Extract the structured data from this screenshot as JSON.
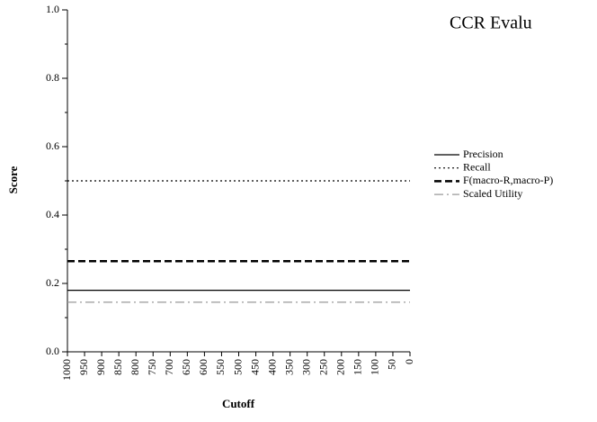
{
  "chart_data": {
    "type": "line",
    "title": "CCR Evalu",
    "x_label": "Cutoff",
    "y_label": "Score",
    "x": [
      1000,
      950,
      900,
      850,
      800,
      750,
      700,
      650,
      600,
      550,
      500,
      450,
      400,
      350,
      300,
      250,
      200,
      150,
      100,
      50,
      0
    ],
    "series": [
      {
        "name": "Precision",
        "color": "#000000",
        "line_style": "solid",
        "line_width": 1.2,
        "values": [
          0.18,
          0.18,
          0.18,
          0.18,
          0.18,
          0.18,
          0.18,
          0.18,
          0.18,
          0.18,
          0.18,
          0.18,
          0.18,
          0.18,
          0.18,
          0.18,
          0.18,
          0.18,
          0.18,
          0.18,
          0.18
        ]
      },
      {
        "name": "Recall",
        "color": "#000000",
        "line_style": "dotted",
        "line_width": 1.2,
        "values": [
          0.5,
          0.5,
          0.5,
          0.5,
          0.5,
          0.5,
          0.5,
          0.5,
          0.5,
          0.5,
          0.5,
          0.5,
          0.5,
          0.5,
          0.5,
          0.5,
          0.5,
          0.5,
          0.5,
          0.5,
          0.5
        ]
      },
      {
        "name": "F(macro-R,macro-P)",
        "color": "#000000",
        "line_style": "dashed",
        "line_width": 2.5,
        "values": [
          0.265,
          0.265,
          0.265,
          0.265,
          0.265,
          0.265,
          0.265,
          0.265,
          0.265,
          0.265,
          0.265,
          0.265,
          0.265,
          0.265,
          0.265,
          0.265,
          0.265,
          0.265,
          0.265,
          0.265,
          0.265
        ]
      },
      {
        "name": "Scaled Utility",
        "color": "#999999",
        "line_style": "dashdot",
        "line_width": 1.2,
        "values": [
          0.145,
          0.145,
          0.145,
          0.145,
          0.145,
          0.145,
          0.145,
          0.145,
          0.145,
          0.145,
          0.145,
          0.145,
          0.145,
          0.145,
          0.145,
          0.145,
          0.145,
          0.145,
          0.145,
          0.145,
          0.145
        ]
      }
    ],
    "xlim": [
      1000,
      0
    ],
    "xticks": [
      1000,
      950,
      900,
      850,
      800,
      750,
      700,
      650,
      600,
      550,
      500,
      450,
      400,
      350,
      300,
      250,
      200,
      150,
      100,
      50,
      0
    ],
    "ylim": [
      0,
      1
    ],
    "yticks": [
      {
        "value": 0,
        "label": "0.0"
      },
      0.2,
      0.4,
      0.6,
      0.8,
      {
        "value": 1,
        "label": "1.0"
      }
    ],
    "yminorticks": [
      0.1,
      0.3,
      0.5,
      0.7,
      0.9
    ],
    "legend": "right",
    "grid": false
  }
}
